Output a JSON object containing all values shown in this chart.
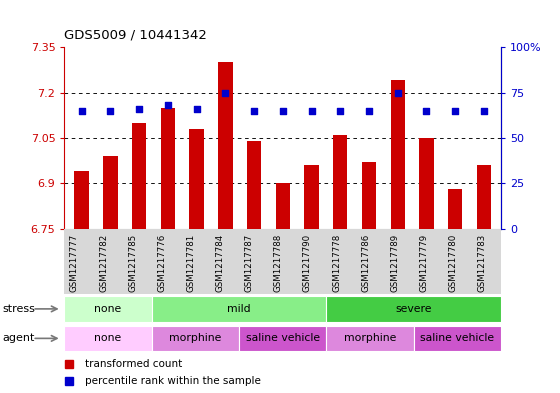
{
  "title": "GDS5009 / 10441342",
  "samples": [
    "GSM1217777",
    "GSM1217782",
    "GSM1217785",
    "GSM1217776",
    "GSM1217781",
    "GSM1217784",
    "GSM1217787",
    "GSM1217788",
    "GSM1217790",
    "GSM1217778",
    "GSM1217786",
    "GSM1217789",
    "GSM1217779",
    "GSM1217780",
    "GSM1217783"
  ],
  "bar_values": [
    6.94,
    6.99,
    7.1,
    7.15,
    7.08,
    7.3,
    7.04,
    6.9,
    6.96,
    7.06,
    6.97,
    7.24,
    7.05,
    6.88,
    6.96
  ],
  "dot_percentile": [
    65,
    65,
    66,
    68,
    66,
    75,
    65,
    65,
    65,
    65,
    65,
    75,
    65,
    65,
    65
  ],
  "bar_bottom": 6.75,
  "ymin": 6.75,
  "ymax": 7.35,
  "yticks": [
    6.75,
    6.9,
    7.05,
    7.2,
    7.35
  ],
  "ytick_labels": [
    "6.75",
    "6.9",
    "7.05",
    "7.2",
    "7.35"
  ],
  "right_yticks": [
    0,
    25,
    50,
    75,
    100
  ],
  "right_ytick_labels": [
    "0",
    "25",
    "50",
    "75",
    "100%"
  ],
  "bar_color": "#cc0000",
  "dot_color": "#0000cc",
  "label_row_bg": "#dddddd",
  "stress_groups": [
    {
      "label": "none",
      "start": 0,
      "end": 3,
      "color": "#ccffcc"
    },
    {
      "label": "mild",
      "start": 3,
      "end": 9,
      "color": "#88ee88"
    },
    {
      "label": "severe",
      "start": 9,
      "end": 15,
      "color": "#44cc44"
    }
  ],
  "agent_groups": [
    {
      "label": "none",
      "start": 0,
      "end": 3,
      "color": "#ffccff"
    },
    {
      "label": "morphine",
      "start": 3,
      "end": 6,
      "color": "#dd88dd"
    },
    {
      "label": "saline vehicle",
      "start": 6,
      "end": 9,
      "color": "#cc55cc"
    },
    {
      "label": "morphine",
      "start": 9,
      "end": 12,
      "color": "#dd88dd"
    },
    {
      "label": "saline vehicle",
      "start": 12,
      "end": 15,
      "color": "#cc55cc"
    }
  ],
  "legend": [
    {
      "label": "transformed count",
      "color": "#cc0000"
    },
    {
      "label": "percentile rank within the sample",
      "color": "#0000cc"
    }
  ]
}
